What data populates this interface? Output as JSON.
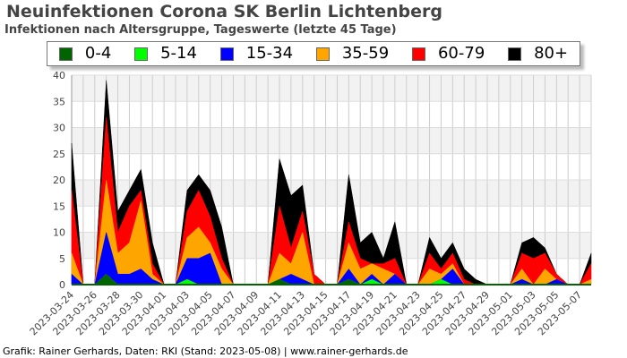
{
  "title": "Neuinfektionen Corona SK Berlin Lichtenberg",
  "subtitle": "Infektionen nach Altersgruppe, Tageswerte (letzte 45 Tage)",
  "footer": "Grafik: Rainer Gerhards, Daten: RKI (Stand: 2023-05-08) | www.rainer-gerhards.de",
  "chart_data": {
    "type": "area",
    "stacked": true,
    "title": "Neuinfektionen Corona SK Berlin Lichtenberg",
    "subtitle": "Infektionen nach Altersgruppe, Tageswerte (letzte 45 Tage)",
    "ylim": [
      0,
      40
    ],
    "yticks": [
      0,
      5,
      10,
      15,
      20,
      25,
      30,
      35,
      40
    ],
    "grid": true,
    "legend": "top",
    "start_date": "2023-03-24",
    "end_date": "2023-05-08",
    "x": [
      "2023-03-24",
      "2023-03-25",
      "2023-03-26",
      "2023-03-27",
      "2023-03-28",
      "2023-03-29",
      "2023-03-30",
      "2023-03-31",
      "2023-04-01",
      "2023-04-02",
      "2023-04-03",
      "2023-04-04",
      "2023-04-05",
      "2023-04-06",
      "2023-04-07",
      "2023-04-08",
      "2023-04-09",
      "2023-04-10",
      "2023-04-11",
      "2023-04-12",
      "2023-04-13",
      "2023-04-14",
      "2023-04-15",
      "2023-04-16",
      "2023-04-17",
      "2023-04-18",
      "2023-04-19",
      "2023-04-20",
      "2023-04-21",
      "2023-04-22",
      "2023-04-23",
      "2023-04-24",
      "2023-04-25",
      "2023-04-26",
      "2023-04-27",
      "2023-04-28",
      "2023-04-29",
      "2023-04-30",
      "2023-05-01",
      "2023-05-02",
      "2023-05-03",
      "2023-05-04",
      "2023-05-05",
      "2023-05-06",
      "2023-05-07",
      "2023-05-08"
    ],
    "series": [
      {
        "name": "0-4",
        "color": "#006400",
        "values": [
          0,
          0,
          0,
          2,
          0,
          0,
          0,
          0,
          0,
          0,
          0,
          0,
          0,
          0,
          0,
          0,
          0,
          0,
          1,
          0,
          0,
          0,
          0,
          0,
          1,
          0,
          0,
          0,
          0,
          0,
          0,
          0,
          0,
          0,
          0,
          0,
          0,
          0,
          0,
          0,
          0,
          0,
          0,
          0,
          0,
          0
        ]
      },
      {
        "name": "5-14",
        "color": "#00ff00",
        "values": [
          0,
          0,
          0,
          0,
          0,
          0,
          0,
          0,
          0,
          0,
          1,
          0,
          0,
          0,
          0,
          0,
          0,
          0,
          0,
          0,
          0,
          0,
          0,
          0,
          0,
          0,
          1,
          0,
          0,
          0,
          0,
          0,
          1,
          0,
          0,
          0,
          0,
          0,
          0,
          0,
          0,
          0,
          0,
          0,
          0,
          0
        ]
      },
      {
        "name": "15-34",
        "color": "#0000ff",
        "values": [
          2,
          0,
          0,
          8,
          2,
          2,
          3,
          1,
          0,
          0,
          4,
          5,
          6,
          0,
          0,
          0,
          0,
          0,
          0,
          2,
          1,
          0,
          0,
          0,
          2,
          0,
          1,
          0,
          2,
          0,
          0,
          0,
          0,
          3,
          0,
          0,
          0,
          0,
          0,
          1,
          0,
          0,
          1,
          0,
          0,
          0
        ]
      },
      {
        "name": "35-59",
        "color": "#ffa500",
        "values": [
          4,
          0,
          0,
          10,
          4,
          6,
          13,
          1,
          0,
          0,
          4,
          6,
          2,
          3,
          0,
          0,
          0,
          0,
          5,
          2,
          9,
          0,
          0,
          0,
          5,
          3,
          2,
          3,
          0,
          0,
          0,
          3,
          1,
          1,
          0,
          0,
          0,
          0,
          0,
          2,
          0,
          3,
          0,
          0,
          0,
          1
        ]
      },
      {
        "name": "60-79",
        "color": "#ff0000",
        "values": [
          12,
          0,
          0,
          12,
          4,
          7,
          2,
          2,
          0,
          0,
          5,
          7,
          5,
          2,
          0,
          0,
          0,
          0,
          9,
          3,
          4,
          2,
          0,
          0,
          4,
          2,
          0,
          1,
          3,
          0,
          0,
          3,
          1,
          2,
          1,
          0,
          0,
          0,
          0,
          3,
          5,
          3,
          1,
          0,
          0,
          3
        ]
      },
      {
        "name": "80+",
        "color": "#000000",
        "values": [
          9,
          0,
          0,
          7,
          4,
          3,
          4,
          4,
          0,
          0,
          4,
          3,
          5,
          6,
          0,
          0,
          0,
          0,
          9,
          10,
          5,
          0,
          0,
          0,
          9,
          3,
          6,
          1,
          7,
          0,
          0,
          3,
          2,
          2,
          2,
          1,
          0,
          0,
          0,
          2,
          4,
          1,
          0,
          0,
          0,
          2
        ]
      }
    ]
  }
}
